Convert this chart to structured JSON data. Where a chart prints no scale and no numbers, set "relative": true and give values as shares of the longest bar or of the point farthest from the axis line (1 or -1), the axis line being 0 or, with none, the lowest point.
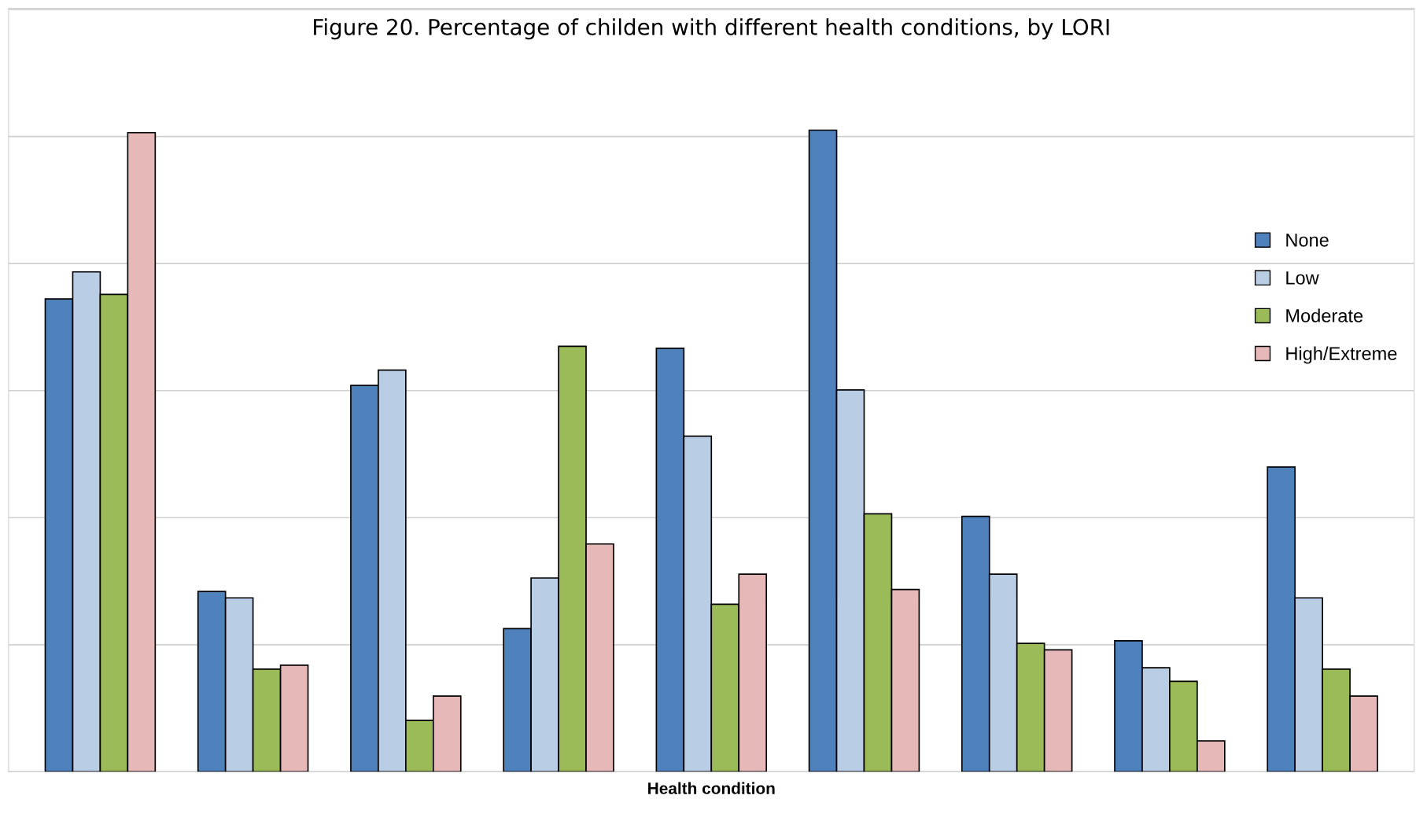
{
  "chart_data": {
    "type": "bar",
    "title": "Figure 20. Percentage of childen with different health conditions, by LORI",
    "xlabel": "Health condition",
    "relative": true,
    "grid": "y",
    "legend": "right",
    "categories": [
      null,
      null,
      null,
      null,
      null,
      null,
      null,
      null,
      null
    ],
    "series": [
      {
        "name": "None",
        "color": "#4f81bd",
        "values": [
          0.737,
          0.281,
          0.602,
          0.223,
          0.66,
          1.0,
          0.398,
          0.204,
          0.475
        ]
      },
      {
        "name": "Low",
        "color": "#b9cde5",
        "values": [
          0.779,
          0.271,
          0.626,
          0.302,
          0.523,
          0.595,
          0.308,
          0.162,
          0.271
        ]
      },
      {
        "name": "Moderate",
        "color": "#9bbb59",
        "values": [
          0.744,
          0.16,
          0.08,
          0.663,
          0.261,
          0.402,
          0.2,
          0.141,
          0.16
        ]
      },
      {
        "name": "High/Extreme",
        "color": "#e6b9b8",
        "values": [
          0.996,
          0.166,
          0.118,
          0.355,
          0.308,
          0.284,
          0.19,
          0.048,
          0.118
        ]
      }
    ]
  }
}
